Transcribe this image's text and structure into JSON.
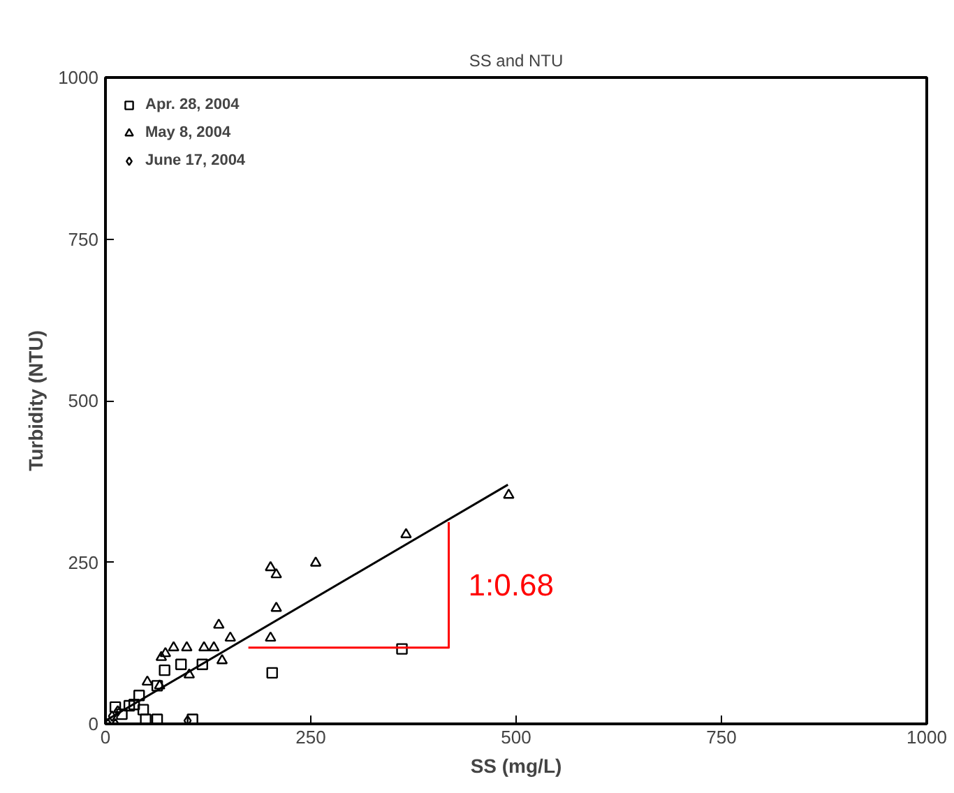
{
  "chart_data": {
    "type": "scatter",
    "title": "SS and NTU",
    "xlabel": "SS (mg/L)",
    "ylabel": "Turbidity (NTU)",
    "xlim": [
      0,
      1000
    ],
    "ylim": [
      0,
      1000
    ],
    "xticks": [
      0,
      250,
      500,
      750,
      1000
    ],
    "yticks": [
      0,
      250,
      500,
      750,
      1000
    ],
    "grid": false,
    "legend": "top left",
    "series": [
      {
        "name": "Apr. 28, 2004",
        "color": "#000000",
        "marker": "square",
        "x": [
          203,
          361,
          72,
          92,
          118,
          63,
          41,
          29,
          46,
          49,
          63,
          106,
          12,
          15,
          20,
          35
        ],
        "values": [
          79,
          116,
          83,
          92,
          92,
          59,
          44,
          28,
          22,
          7,
          7,
          7,
          26,
          null,
          15,
          30
        ]
      },
      {
        "name": "May 8, 2004",
        "color": "#000000",
        "marker": "triangle",
        "x": [
          491,
          366,
          256,
          201,
          208,
          208,
          201,
          152,
          138,
          142,
          99,
          83,
          73,
          68,
          120,
          132,
          102,
          51,
          66
        ],
        "values": [
          354,
          293,
          249,
          242,
          231,
          179,
          133,
          133,
          153,
          98,
          118,
          118,
          109,
          103,
          118,
          118,
          76,
          65,
          59
        ]
      },
      {
        "name": "June 17, 2004",
        "color": "#000000",
        "marker": "diamond",
        "x": [
          3,
          5,
          8,
          10,
          12,
          15,
          100
        ],
        "values": [
          0,
          null,
          12,
          null,
          0,
          20,
          5
        ]
      },
      {
        "type": "line",
        "color": "#000000",
        "marker": "none",
        "x": [
          0,
          490
        ],
        "values": [
          5,
          370
        ]
      },
      {
        "type": "line",
        "color": "#ff0000",
        "marker": "none",
        "x": [
          174,
          418,
          418
        ],
        "values": [
          118,
          118,
          312
        ]
      }
    ],
    "annotations": [
      "1:0.68"
    ]
  }
}
